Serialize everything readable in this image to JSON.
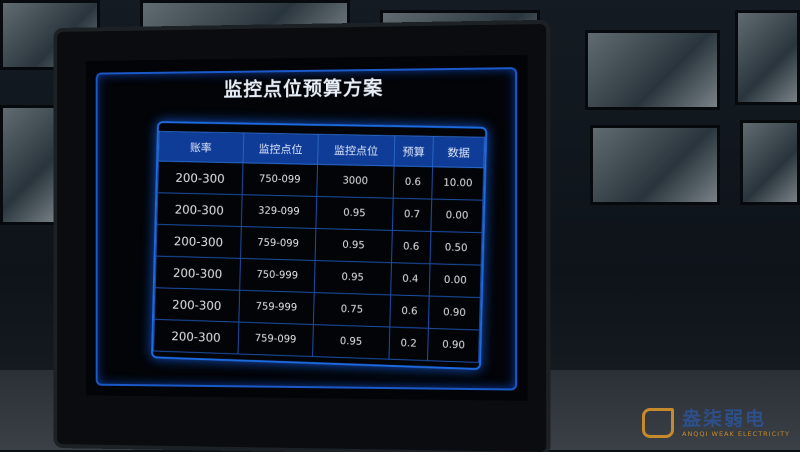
{
  "screen": {
    "title": "监控点位预算方案",
    "table": {
      "headers": [
        "账率",
        "监控点位",
        "监控点位",
        "预算",
        "数据"
      ],
      "rows": [
        [
          "200-300",
          "750-099",
          "3000",
          "0.6",
          "10.00"
        ],
        [
          "200-300",
          "329-099",
          "0.95",
          "0.7",
          "0.00"
        ],
        [
          "200-300",
          "759-099",
          "0.95",
          "0.6",
          "0.50"
        ],
        [
          "200-300",
          "750-999",
          "0.95",
          "0.4",
          "0.00"
        ],
        [
          "200-300",
          "759-999",
          "0.75",
          "0.6",
          "0.90"
        ],
        [
          "200-300",
          "759-099",
          "0.95",
          "0.2",
          "0.90"
        ]
      ]
    }
  },
  "colors": {
    "accent": "#1e6ae0",
    "header_bg": "#0f3c96",
    "watermark": "#c68a2c"
  },
  "watermark": {
    "cn": "盎柒弱电",
    "en": "ANQQI WEAK ELECTRICITY"
  }
}
